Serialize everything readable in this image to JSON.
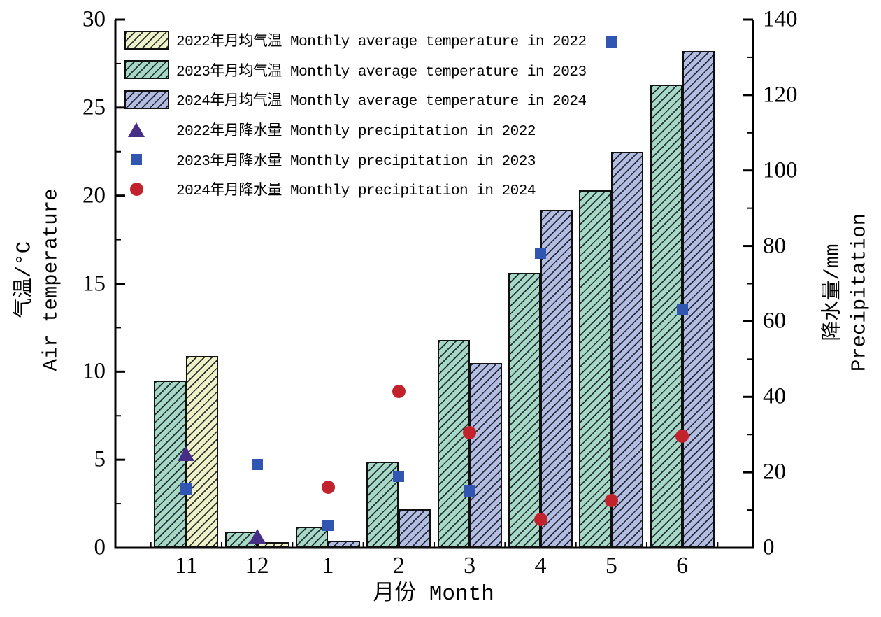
{
  "chart_data": {
    "type": "bar",
    "subtype": "grouped bars (temperature) with scatter overlay (precipitation), dual y-axes",
    "categories": [
      "11",
      "12",
      "1",
      "2",
      "3",
      "4",
      "5",
      "6"
    ],
    "x_axis": {
      "title": "月份 Month"
    },
    "left_axis": {
      "title_line1": "气温/°C",
      "title_line2": "Air temperature",
      "min": 0,
      "max": 30,
      "major_step": 5,
      "minor_step": 2.5,
      "ticks": [
        "0",
        "5",
        "10",
        "15",
        "20",
        "25",
        "30"
      ]
    },
    "right_axis": {
      "title_line1": "降水量/mm",
      "title_line2": "Precipitation",
      "min": 0,
      "max": 140,
      "major_step": 20,
      "minor_step": 10,
      "ticks": [
        "0",
        "20",
        "40",
        "60",
        "80",
        "100",
        "120",
        "140"
      ]
    },
    "bar_series": [
      {
        "name": "2022年月均气温 Monthly average temperature in 2022",
        "color": "#f0f1c6",
        "hatch": "diagonal",
        "slot": "right",
        "values": [
          10.9,
          0.3,
          null,
          null,
          null,
          null,
          null,
          null
        ]
      },
      {
        "name": "2023年月均气温 Monthly average temperature in 2023",
        "color": "#a7d8c6",
        "hatch": "diagonal",
        "slot": "left",
        "values": [
          9.5,
          0.9,
          1.2,
          4.9,
          11.8,
          15.6,
          20.3,
          26.3
        ]
      },
      {
        "name": "2024年月均气温 Monthly average temperature in 2024",
        "color": "#b4bce2",
        "hatch": "diagonal",
        "slot": "right",
        "values": [
          null,
          null,
          0.4,
          2.2,
          10.5,
          19.2,
          22.5,
          28.2
        ]
      }
    ],
    "scatter_series": [
      {
        "name": "2022年月降水量 Monthly precipitation in 2022",
        "marker": "triangle",
        "color": "#462e86",
        "values": [
          25,
          3,
          null,
          null,
          null,
          null,
          null,
          null
        ]
      },
      {
        "name": "2023年月降水量 Monthly precipitation in 2023",
        "marker": "square",
        "color": "#3156b2",
        "values": [
          15.5,
          22,
          6,
          19,
          15,
          78,
          134,
          63
        ]
      },
      {
        "name": "2024年月降水量 Monthly precipitation in 2024",
        "marker": "circle",
        "color": "#c2222b",
        "values": [
          null,
          null,
          16,
          41.5,
          30.5,
          7.5,
          12.5,
          29.5
        ]
      }
    ],
    "grid": "off",
    "legend_position": "top-left inside plot"
  }
}
